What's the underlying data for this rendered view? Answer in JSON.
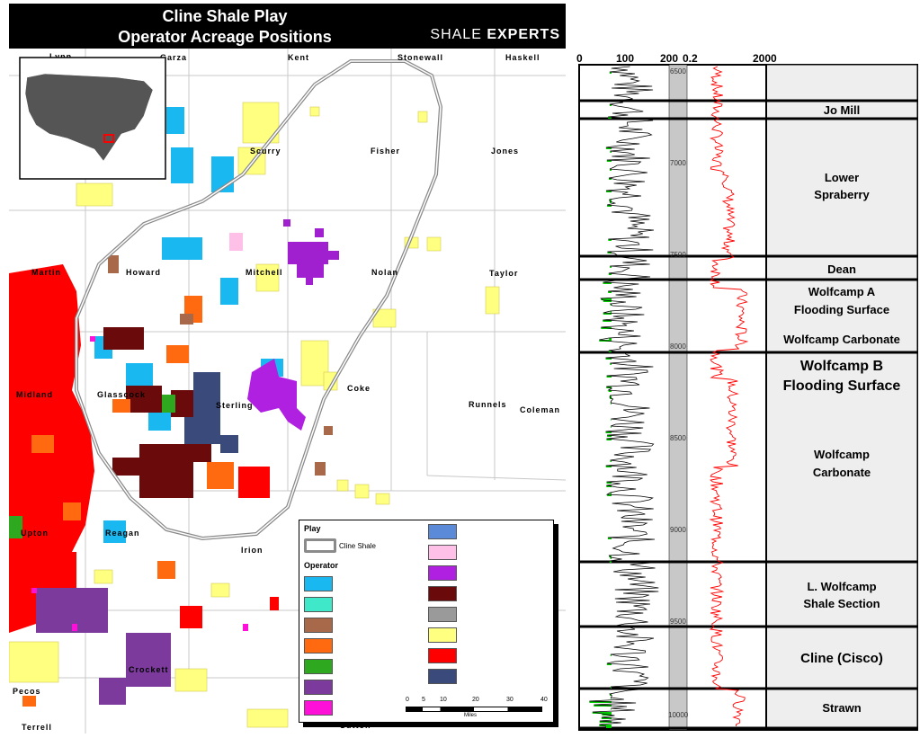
{
  "header": {
    "title_line1": "Cline Shale Play",
    "title_line2": "Operator Acreage Positions",
    "brand_a": "SHALE",
    "brand_b": "EXPERTS"
  },
  "counties": {
    "lynn": "Lynn",
    "garza": "Garza",
    "kent": "Kent",
    "stonewall": "Stonewall",
    "haskell": "Haskell",
    "scurry": "Scurry",
    "fisher": "Fisher",
    "jones": "Jones",
    "martin": "Martin",
    "howard": "Howard",
    "mitchell": "Mitchell",
    "nolan": "Nolan",
    "taylor": "Taylor",
    "midland": "Midland",
    "glasscock": "Glasscock",
    "sterling": "Sterling",
    "coke": "Coke",
    "runnels": "Runnels",
    "coleman": "Coleman",
    "upton": "Upton",
    "reagan": "Reagan",
    "irion": "Irion",
    "crockett": "Crockett",
    "pecos": "Pecos",
    "terrell": "Terrell",
    "sutton": "Sutton"
  },
  "legend": {
    "play_title": "Play",
    "play_item": "Cline Shale",
    "operator_title": "Operator",
    "scale_ticks": [
      "0",
      "5",
      "10",
      "20",
      "30",
      "40"
    ],
    "scale_unit": "Miles",
    "swatch_colors_left": [
      "#19b8f0",
      "#3fe8c8",
      "#a8684a",
      "#ff6a10",
      "#2ea81e",
      "#7b3a9c",
      "#ff10d8"
    ],
    "swatch_colors_right": [
      "#5a8ad8",
      "#ffc0e8",
      "#b020e0",
      "#6a0a0a",
      "#9a9a9a",
      "#ffff80",
      "#ff0000",
      "#3a4a7a"
    ]
  },
  "colors": {
    "midland_red": "#ff0000",
    "sterling_purple": "#b020e0",
    "mitchell_purple": "#a020d0",
    "yellow": "#ffff80",
    "cyan": "#19b8f0",
    "maroon": "#6a0a0a",
    "orange": "#ff6a10",
    "navy": "#3a4a7a",
    "play_outline": "#8a8a8a",
    "log_red": "#ff0000",
    "log_green": "#00cc00",
    "zone_bg": "#eeeeee"
  },
  "log": {
    "axis": [
      "0",
      "100",
      "200",
      "0.2",
      "2000"
    ],
    "depths": [
      "6500",
      "7000",
      "7500",
      "8000",
      "8500",
      "9000",
      "9500",
      "10000"
    ],
    "zones": {
      "jo_mill": "Jo Mill",
      "lower_spraberry_1": "Lower",
      "lower_spraberry_2": "Spraberry",
      "dean": "Dean",
      "wolfcamp_a_1": "Wolfcamp A",
      "wolfcamp_a_2": "Flooding Surface",
      "wolfcamp_carb_1": "Wolfcamp Carbonate",
      "wolfcamp_b_1": "Wolfcamp B",
      "wolfcamp_b_2": "Flooding Surface",
      "wolfcamp_carb2_1": "Wolfcamp",
      "wolfcamp_carb2_2": "Carbonate",
      "lw_1": "L. Wolfcamp",
      "lw_2": "Shale Section",
      "cline": "Cline (Cisco)",
      "strawn": "Strawn"
    }
  }
}
